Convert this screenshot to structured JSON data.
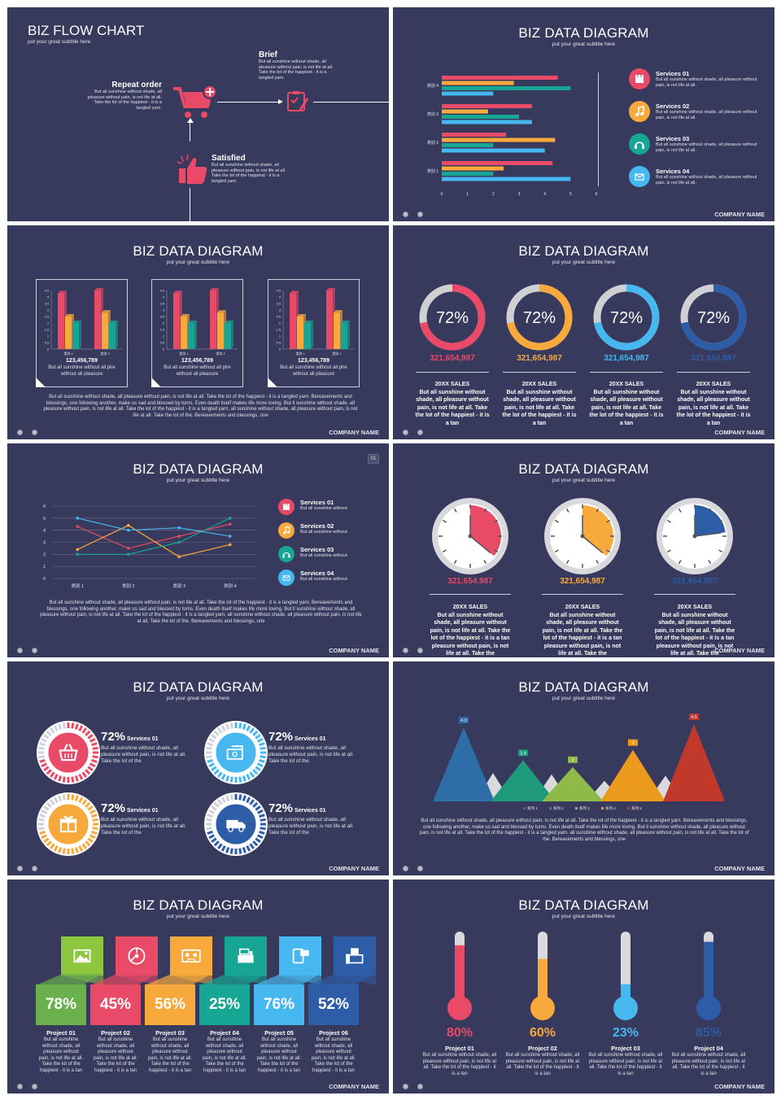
{
  "footer": {
    "company": "COMPANY NAME"
  },
  "slide1": {
    "title": "BIZ FLOW CHART",
    "subtitle": "put your great subtitle here",
    "repeat": {
      "title": "Repeat order",
      "text": "But all sunshine without shade, all pleasure without pain, is not life at all. Take the lot of the happiest - it is a tangled yarn."
    },
    "brief": {
      "title": "Brief",
      "text": "But all sunshine without shade, all pleasure without pain, is not life at all. Take the lot of the happiest - it is a tangled yarn."
    },
    "satisfied": {
      "title": "Satisfied",
      "text": "But all sunshine without shade, all pleasure without pain, is not life at all. Take the lot of the happiest - it is a tangled yarn."
    }
  },
  "slide2": {
    "title": "BIZ DATA DIAGRAM",
    "subtitle": "put your great subtitle here",
    "services": [
      {
        "title": "Services 01",
        "text": "But all sunshine without shade, all pleasure without pain, is not life at all.",
        "icon": "clapperboard-icon",
        "color": "#e84a67"
      },
      {
        "title": "Services 02",
        "text": "But all sunshine without shade, all pleasure without pain, is not life at all.",
        "icon": "music-note-icon",
        "color": "#f7a93c"
      },
      {
        "title": "Services 03",
        "text": "But all sunshine without shade, all pleasure without pain, is not life at all.",
        "icon": "headphones-icon",
        "color": "#17a594"
      },
      {
        "title": "Services 04",
        "text": "But all sunshine without shade, all pleasure without pain, is not life at all.",
        "icon": "mail-icon",
        "color": "#46b7ef"
      }
    ]
  },
  "slide3": {
    "title": "BIZ DATA DIAGRAM",
    "subtitle": "put your great subtitle here",
    "number": "123,456,789",
    "caption": "But all sunshine without all plre without all pleasure",
    "paragraph": "But all sunshine without shade, all pleasure without pain, is not life at all. Take the lot of the happiest - it is a tangled yarn. Bereavements and blessings, one following another, make us sad and blessed by turns. Even death itself makes life more loving. But ll sunshine without shade, all pleasure without pain, is not life at all. Take the lot of the happiest - it is a tangled yarn. all sunshine without shade, all pleasure without pain, is not life at all. Take the lot of the. Bereavements and blessings, one"
  },
  "slide4": {
    "title": "BIZ DATA DIAGRAM",
    "subtitle": "put your great subtitle here",
    "items": [
      {
        "percent": "72%",
        "value": 0.72,
        "number": "321,654,987",
        "color": "#e84a67",
        "heading": "20XX SALES",
        "text": "But all sunshine without shade, all pleasure without pain, is not life at all. Take the lot of the happiest - it is a tan"
      },
      {
        "percent": "72%",
        "value": 0.72,
        "number": "321,654,987",
        "color": "#f7a93c",
        "heading": "20XX SALES",
        "text": "But all sunshine without shade, all pleasure without pain, is not life at all. Take the lot of the happiest - it is a tan"
      },
      {
        "percent": "72%",
        "value": 0.72,
        "number": "321,654,987",
        "color": "#46b7ef",
        "heading": "20XX SALES",
        "text": "But all sunshine without shade, all pleasure without pain, is not life at all. Take the lot of the happiest - it is a tan"
      },
      {
        "percent": "72%",
        "value": 0.72,
        "number": "321,654,987",
        "color": "#2e5da8",
        "heading": "20XX SALES",
        "text": "But all sunshine without shade, all pleasure without pain, is not life at all. Take the lot of the happiest - it is a tan"
      }
    ]
  },
  "slide5": {
    "title": "BIZ DATA DIAGRAM",
    "subtitle": "put your great subtitle here",
    "badge": "01",
    "services": [
      {
        "title": "Services 01",
        "text": "But all sunshine without",
        "icon": "clapperboard-icon",
        "color": "#e84a67"
      },
      {
        "title": "Services 02",
        "text": "But all sunshine without",
        "icon": "music-note-icon",
        "color": "#f7a93c"
      },
      {
        "title": "Services 03",
        "text": "But all sunshine without",
        "icon": "headphones-icon",
        "color": "#17a594"
      },
      {
        "title": "Services 04",
        "text": "But all sunshine without",
        "icon": "mail-icon",
        "color": "#46b7ef"
      }
    ],
    "paragraph": "But all sunshine without shade, all pleasure without pain, is not life at all. Take the lot of the happiest - it is a tangled yarn. Bereavements and blessings, one following another, make us sad and blessed by turns. Even death itself makes life more loving. But ll sunshine without shade, all pleasure without pain, is not life at all. Take the lot of the happiest - it is a tangled yarn. all sunshine without shade, all pleasure without pain, is not life at all. Take the lot of the. Bereavements and blessings, one"
  },
  "slide6": {
    "title": "BIZ DATA DIAGRAM",
    "subtitle": "put your great subtitle here",
    "items": [
      {
        "number": "321,654,987",
        "value": 0.36,
        "color": "#e84a67",
        "heading": "20XX SALES",
        "text": "But all sunshine without shade, all pleasure without pain, is not life at all. Take the lot of the happiest - it is a tan pleasure without pain, is not life at all. Take the"
      },
      {
        "number": "321,654,987",
        "value": 0.36,
        "color": "#f7a93c",
        "heading": "20XX SALES",
        "text": "But all sunshine without shade, all pleasure without pain, is not life at all. Take the lot of the happiest - it is a tan pleasure without pain, is not life at all. Take the"
      },
      {
        "number": "321,654,987",
        "value": 0.23,
        "color": "#2e5da8",
        "heading": "20XX SALES",
        "text": "But all sunshine without shade, all pleasure without pain, is not life at all. Take the lot of the happiest - it is a tan pleasure without pain, is not life at all. Take the"
      }
    ]
  },
  "slide7": {
    "title": "BIZ DATA DIAGRAM",
    "subtitle": "put your great subtitle here",
    "items": [
      {
        "percent": "72%",
        "label": "Services 01",
        "text": "But all sunshine without shade, all pleasure without pain, is not life at all. Take the lot of the",
        "color": "#e84a67",
        "icon": "basket-icon"
      },
      {
        "percent": "72%",
        "label": "Services 01",
        "text": "But all sunshine without shade, all pleasure without pain, is not life at all. Take the lot of the",
        "color": "#46b7ef",
        "icon": "cash-icon"
      },
      {
        "percent": "72%",
        "label": "Services 01",
        "text": "But all sunshine without shade, all pleasure without pain, is not life at all. Take the lot of the",
        "color": "#f7a93c",
        "icon": "gift-icon"
      },
      {
        "percent": "72%",
        "label": "Services 01",
        "text": "But all sunshine without shade, all pleasure without pain, is not life at all. Take the lot of the",
        "color": "#2e5da8",
        "icon": "delivery-truck-icon"
      }
    ]
  },
  "slide8": {
    "title": "BIZ DATA DIAGRAM",
    "subtitle": "put your great subtitle here",
    "paragraph": "But all sunshine without shade, all pleasure without pain, is not life at all. Take the lot of the happiest - it is a tangled yarn. Bereavements and blessings, one following another, make us sad and blessed by turns. Even death itself makes life more loving. But ll sunshine without shade, all pleasure without pain, is not life at all. Take the lot of the happiest - it is a tangled yarn. all sunshine without shade, all pleasure without pain, is not life at all. Take the lot of the. Bereavements and blessings, one"
  },
  "slide9": {
    "title": "BIZ DATA DIAGRAM",
    "subtitle": "put your great subtitle here",
    "items": [
      {
        "percent": "78%",
        "title": "Project 01",
        "text": "But all sunshine without shade, all pleasure without pain, is not life at all. Take the lot of the happiest - it is a tan",
        "top": "#8dc63f",
        "bottom": "#6ab04c",
        "icon": "picture-icon"
      },
      {
        "percent": "45%",
        "title": "Project 02",
        "text": "But all sunshine without shade, all pleasure without pain, is not life at all. Take the lot of the happiest - it is a tan",
        "top": "#e84a67",
        "bottom": "#e84a67",
        "icon": "disc-icon"
      },
      {
        "percent": "56%",
        "title": "Project 03",
        "text": "But all sunshine without shade, all pleasure without pain, is not life at all. Take the lot of the happiest - it is a tan",
        "top": "#f7a93c",
        "bottom": "#f7a93c",
        "icon": "cassette-icon"
      },
      {
        "percent": "25%",
        "title": "Project 04",
        "text": "But all sunshine without shade, all pleasure without pain, is not life at all. Take the lot of the happiest - it is a tan",
        "top": "#17a594",
        "bottom": "#17a594",
        "icon": "cash-register-icon"
      },
      {
        "percent": "76%",
        "title": "Project 05",
        "text": "But all sunshine without shade, all pleasure without pain, is not life at all. Take the lot of the happiest - it is a tan",
        "top": "#46b7ef",
        "bottom": "#46b7ef",
        "icon": "chat-phone-icon"
      },
      {
        "percent": "52%",
        "title": "Project 06",
        "text": "But all sunshine without shade, all pleasure without pain, is not life at all. Take the lot of the happiest - it is a tan",
        "top": "#2e5da8",
        "bottom": "#2e5da8",
        "icon": "fax-icon"
      }
    ]
  },
  "slide10": {
    "title": "BIZ DATA DIAGRAM",
    "subtitle": "put your great subtitle here",
    "items": [
      {
        "percent": "80%",
        "value": 0.8,
        "title": "Project 01",
        "text": "But all sunshine without shade, all pleasure without pain, is not life at all. Take the lot of the happiest - it is a tan",
        "color": "#e84a67"
      },
      {
        "percent": "60%",
        "value": 0.6,
        "title": "Project 02",
        "text": "But all sunshine without shade, all pleasure without pain, is not life at all. Take the lot of the happiest - it is a tan",
        "color": "#f7a93c"
      },
      {
        "percent": "23%",
        "value": 0.23,
        "title": "Project 03",
        "text": "But all sunshine without shade, all pleasure without pain, is not life at all. Take the lot of the happiest - it is a tan",
        "color": "#46b7ef"
      },
      {
        "percent": "85%",
        "value": 0.85,
        "title": "Project 04",
        "text": "But all sunshine without shade, all pleasure without pain, is not life at all. Take the lot of the happiest - it is a tan",
        "color": "#2e5da8"
      }
    ]
  },
  "chart_data": [
    {
      "type": "bar",
      "orientation": "horizontal",
      "categories": [
        "类别 1",
        "类别 2",
        "类别 3",
        "类别 4"
      ],
      "series": [
        {
          "values": [
            4.3,
            2.5,
            3.5,
            4.5
          ],
          "color": "#e84a67"
        },
        {
          "values": [
            2.4,
            4.4,
            1.8,
            2.8
          ],
          "color": "#f7a93c"
        },
        {
          "values": [
            2.0,
            2.0,
            3.0,
            5.0
          ],
          "color": "#17a594"
        },
        {
          "values": [
            5.0,
            4.0,
            3.5,
            2.0
          ],
          "color": "#46b7ef"
        }
      ],
      "xticks": [
        "0",
        "1",
        "2",
        "3",
        "4",
        "5",
        "6"
      ],
      "xlim": [
        0,
        6
      ]
    },
    {
      "type": "bar",
      "categories": [
        "类别 1",
        "类别 2"
      ],
      "series": [
        {
          "values": [
            4.3,
            4.5
          ],
          "color": "#e84a67"
        },
        {
          "values": [
            2.5,
            2.8
          ],
          "color": "#f7a93c"
        },
        {
          "values": [
            2.0,
            2.0
          ],
          "color": "#17a594"
        }
      ],
      "yticks": [
        "0",
        "0.5",
        "1",
        "1.5",
        "2",
        "2.5",
        "3",
        "3.5",
        "4",
        "4.5"
      ],
      "ylim": [
        0,
        4.5
      ]
    },
    {
      "type": "line",
      "categories": [
        "类别 1",
        "类别 2",
        "类别 3",
        "类别 4"
      ],
      "series": [
        {
          "values": [
            4.3,
            2.5,
            3.5,
            4.5
          ],
          "color": "#e84a67"
        },
        {
          "values": [
            2.4,
            4.4,
            1.8,
            2.8
          ],
          "color": "#f7a93c"
        },
        {
          "values": [
            2.0,
            2.0,
            3.0,
            5.0
          ],
          "color": "#17a594"
        },
        {
          "values": [
            5.0,
            4.0,
            4.2,
            3.5
          ],
          "color": "#46b7ef"
        }
      ],
      "yticks": [
        "0",
        "1",
        "2",
        "3",
        "4",
        "5",
        "6"
      ],
      "ylim": [
        0,
        6
      ]
    },
    {
      "type": "area",
      "style": "peaks",
      "series": [
        {
          "name": "系列 1",
          "value": 4.3,
          "color": "#2e6da8"
        },
        {
          "name": "系列 2",
          "value": 2.4,
          "color": "#1e9a7b"
        },
        {
          "name": "系列 3",
          "value": 2.0,
          "color": "#8dba48"
        },
        {
          "name": "系列 4",
          "value": 3.0,
          "color": "#eb9a1c"
        },
        {
          "name": "系列 5",
          "value": 4.5,
          "color": "#c0392b"
        }
      ],
      "labels": [
        "4.3",
        "2.4",
        "2",
        "3",
        "4.5"
      ]
    }
  ]
}
